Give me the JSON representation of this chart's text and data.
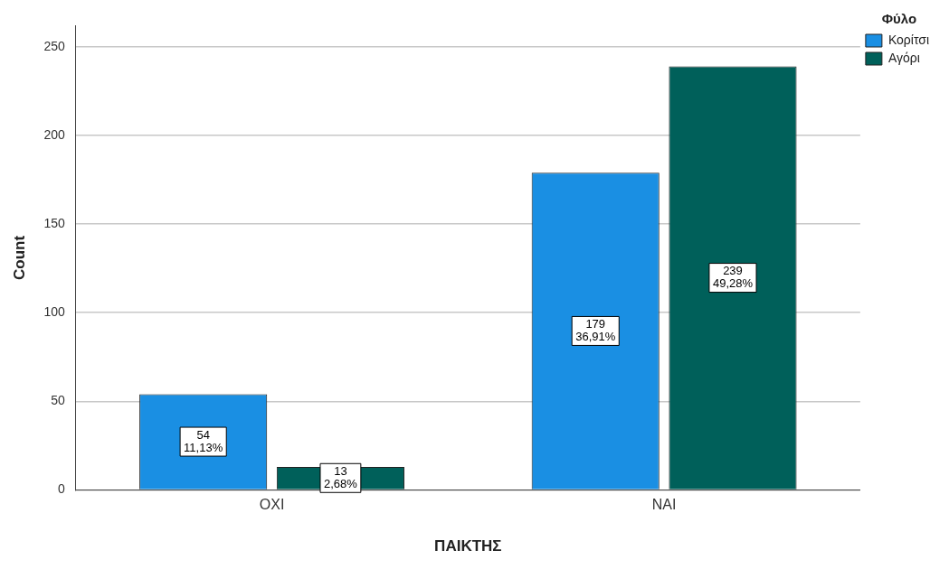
{
  "chart_data": {
    "type": "bar",
    "xlabel": "ΠΑΙΚΤΗΣ",
    "ylabel": "Count",
    "legend_title": "Φύλο",
    "categories": [
      "ΟΧΙ",
      "ΝΑΙ"
    ],
    "series": [
      {
        "name": "Κορίτσι",
        "color": "#1a8fe3",
        "values": [
          54,
          179
        ],
        "value_labels": [
          "54\n11,13%",
          "179\n36,91%"
        ]
      },
      {
        "name": "Αγόρι",
        "color": "#00605a",
        "values": [
          13,
          239
        ],
        "value_labels": [
          "13\n2,68%",
          "239\n49,28%"
        ]
      }
    ],
    "ylim": [
      0,
      262
    ],
    "yticks": [
      0,
      50,
      100,
      150,
      200,
      250
    ],
    "grid": "y",
    "legend": "top right"
  }
}
